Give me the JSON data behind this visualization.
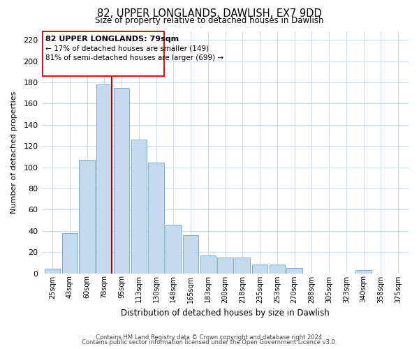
{
  "title": "82, UPPER LONGLANDS, DAWLISH, EX7 9DD",
  "subtitle": "Size of property relative to detached houses in Dawlish",
  "xlabel": "Distribution of detached houses by size in Dawlish",
  "ylabel": "Number of detached properties",
  "bar_labels": [
    "25sqm",
    "43sqm",
    "60sqm",
    "78sqm",
    "95sqm",
    "113sqm",
    "130sqm",
    "148sqm",
    "165sqm",
    "183sqm",
    "200sqm",
    "218sqm",
    "235sqm",
    "253sqm",
    "270sqm",
    "288sqm",
    "305sqm",
    "323sqm",
    "340sqm",
    "358sqm",
    "375sqm"
  ],
  "bar_heights": [
    4,
    38,
    107,
    178,
    175,
    126,
    104,
    46,
    36,
    17,
    15,
    15,
    8,
    8,
    5,
    0,
    0,
    0,
    3,
    0,
    0
  ],
  "bar_color": "#c5d9ef",
  "bar_edge_color": "#7aaed6",
  "vline_color": "#cc0000",
  "ylim": [
    0,
    228
  ],
  "yticks": [
    0,
    20,
    40,
    60,
    80,
    100,
    120,
    140,
    160,
    180,
    200,
    220
  ],
  "annotation_title": "82 UPPER LONGLANDS: 79sqm",
  "annotation_line1": "← 17% of detached houses are smaller (149)",
  "annotation_line2": "81% of semi-detached houses are larger (699) →",
  "footer_line1": "Contains HM Land Registry data © Crown copyright and database right 2024.",
  "footer_line2": "Contains public sector information licensed under the Open Government Licence v3.0.",
  "bg_color": "#ffffff",
  "grid_color": "#c8ddf0"
}
